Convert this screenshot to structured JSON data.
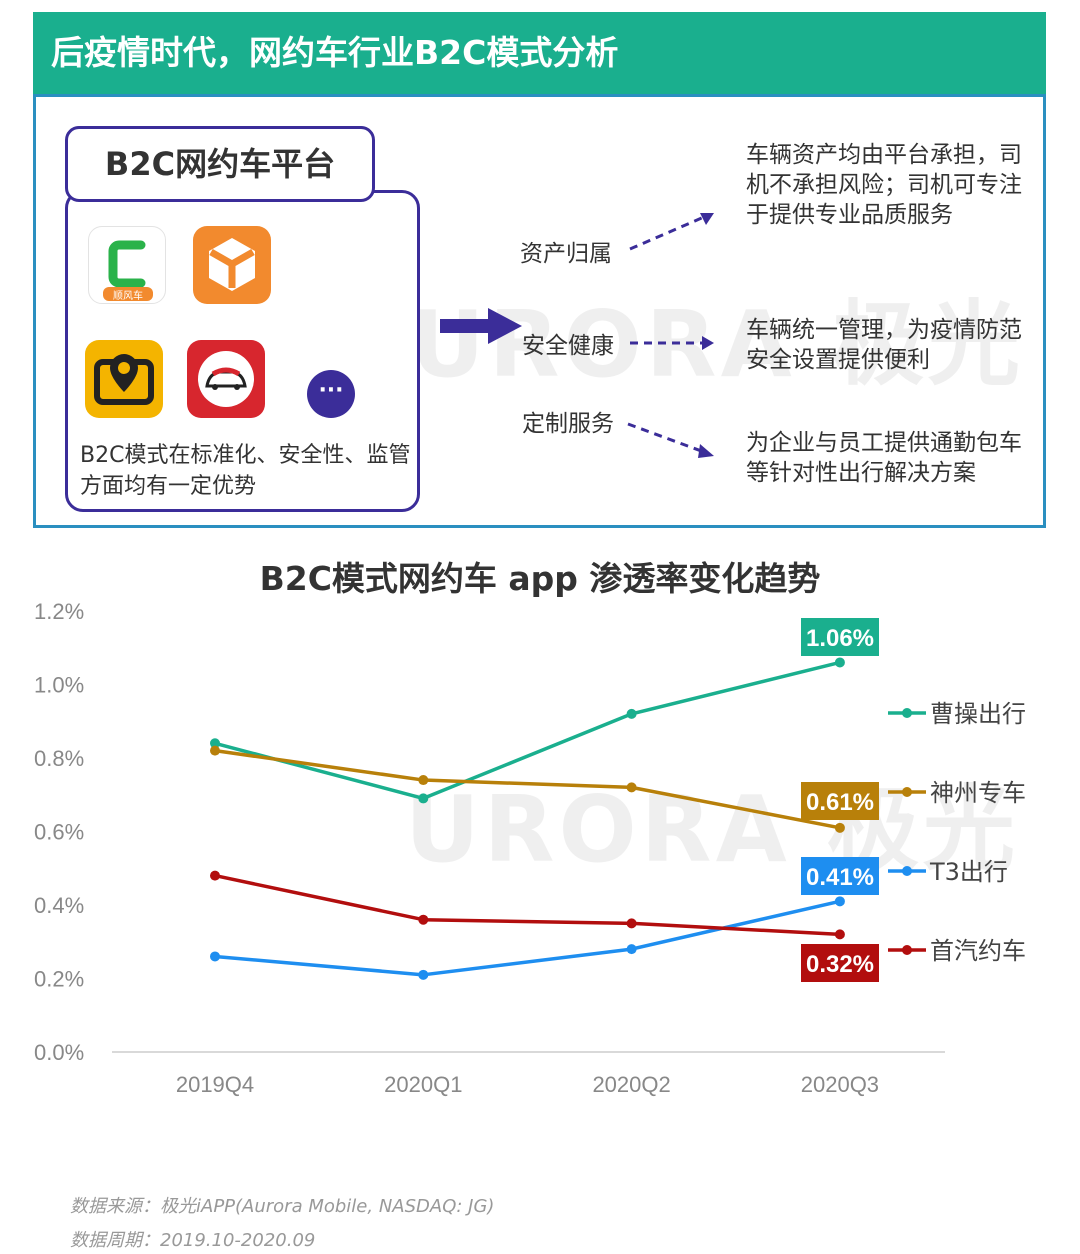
{
  "header": {
    "title": "后疫情时代，网约车行业B2C模式分析"
  },
  "platform": {
    "title": "B2C网约车平台",
    "apps": [
      {
        "name": "caocao-app-icon",
        "badge": "顺风车",
        "color": "#2ab24a"
      },
      {
        "name": "t3-app-icon",
        "color": "#f28a2e"
      },
      {
        "name": "shouqi-app-icon",
        "color": "#f4b400"
      },
      {
        "name": "shenzhou-app-icon",
        "color": "#d7262e"
      },
      {
        "name": "more-apps-icon",
        "color": "#3b2d99",
        "symbol": "···"
      }
    ],
    "note": "B2C模式在标准化、安全性、监管方面均有一定优势"
  },
  "benefits": [
    {
      "label": "资产归属",
      "desc": "车辆资产均由平台承担，司机不承担风险；司机可专注于提供专业品质服务"
    },
    {
      "label": "安全健康",
      "desc": "车辆统一管理，为疫情防范安全设置提供便利"
    },
    {
      "label": "定制服务",
      "desc": "为企业与员工提供通勤包车等针对性出行解决方案"
    }
  ],
  "watermark": {
    "text": "URORA 极光"
  },
  "chart_data": {
    "type": "line",
    "title": "B2C模式网约车 app 渗透率变化趋势",
    "categories": [
      "2019Q4",
      "2020Q1",
      "2020Q2",
      "2020Q3"
    ],
    "ylim": [
      0,
      1.2
    ],
    "yticks": [
      "0.0%",
      "0.2%",
      "0.4%",
      "0.6%",
      "0.8%",
      "1.0%",
      "1.2%"
    ],
    "series": [
      {
        "name": "曹操出行",
        "values": [
          0.84,
          0.69,
          0.92,
          1.06
        ],
        "color": "#1aaf8e",
        "end_label": "1.06%"
      },
      {
        "name": "神州专车",
        "values": [
          0.82,
          0.74,
          0.72,
          0.61
        ],
        "color": "#b8800a",
        "end_label": "0.61%"
      },
      {
        "name": "T3出行",
        "values": [
          0.26,
          0.21,
          0.28,
          0.41
        ],
        "color": "#1e8ef0",
        "end_label": "0.41%"
      },
      {
        "name": "首汽约车",
        "values": [
          0.48,
          0.36,
          0.35,
          0.32
        ],
        "color": "#b20e0e",
        "end_label": "0.32%"
      }
    ]
  },
  "footer": {
    "source": "数据来源：极光iAPP(Aurora Mobile, NASDAQ: JG)",
    "period": "数据周期：2019.10-2020.09"
  }
}
